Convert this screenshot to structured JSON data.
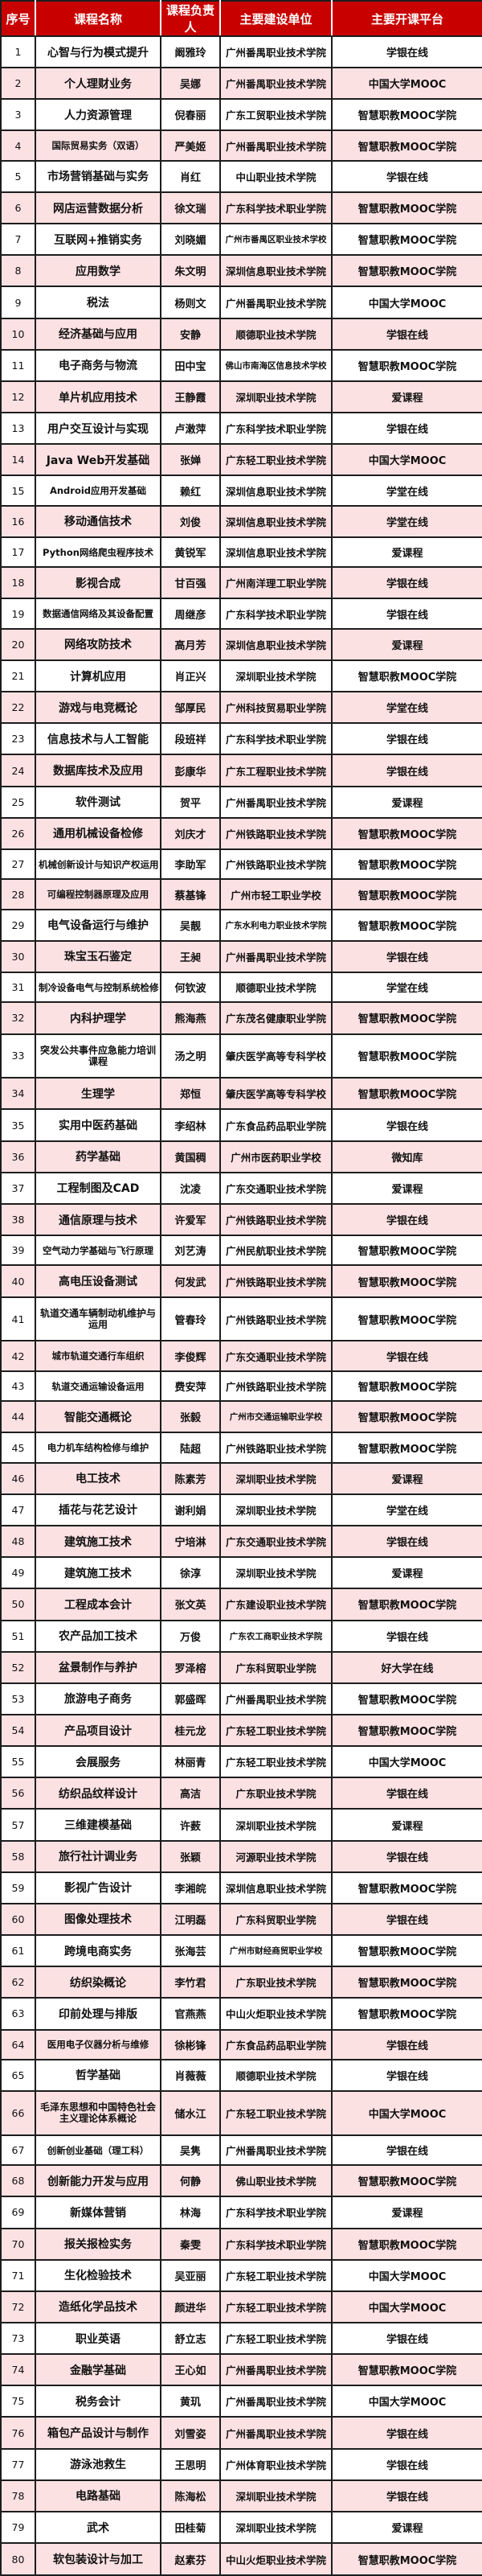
{
  "colors": {
    "header_bg": "#c80100",
    "header_text": "#ffffff",
    "alt_row_bg": "#fce1e3",
    "row_bg": "#ffffff",
    "border": "#1d1d1d",
    "text": "#111111"
  },
  "table": {
    "columns": [
      "序号",
      "课程名称",
      "课程负责人",
      "主要建设单位",
      "主要开课平台"
    ],
    "rows": [
      [
        "1",
        "心智与行为模式提升",
        "阚雅玲",
        "广州番禺职业技术学院",
        "学银在线"
      ],
      [
        "2",
        "个人理财业务",
        "吴娜",
        "广州番禺职业技术学院",
        "中国大学MOOC"
      ],
      [
        "3",
        "人力资源管理",
        "倪春丽",
        "广东工贸职业技术学院",
        "智慧职教MOOC学院"
      ],
      [
        "4",
        "国际贸易实务（双语）",
        "严美姬",
        "广州番禺职业技术学院",
        "智慧职教MOOC学院"
      ],
      [
        "5",
        "市场营销基础与实务",
        "肖红",
        "中山职业技术学院",
        "学银在线"
      ],
      [
        "6",
        "网店运营数据分析",
        "徐文瑞",
        "广东科学技术职业学院",
        "智慧职教MOOC学院"
      ],
      [
        "7",
        "互联网+推销实务",
        "刘晓媚",
        "广州市番禺区职业技术学校",
        "智慧职教MOOC学院"
      ],
      [
        "8",
        "应用数学",
        "朱文明",
        "深圳信息职业技术学院",
        "智慧职教MOOC学院"
      ],
      [
        "9",
        "税法",
        "杨则文",
        "广州番禺职业技术学院",
        "中国大学MOOC"
      ],
      [
        "10",
        "经济基础与应用",
        "安静",
        "顺德职业技术学院",
        "学银在线"
      ],
      [
        "11",
        "电子商务与物流",
        "田中宝",
        "佛山市南海区信息技术学校",
        "智慧职教MOOC学院"
      ],
      [
        "12",
        "单片机应用技术",
        "王静霞",
        "深圳职业技术学院",
        "爱课程"
      ],
      [
        "13",
        "用户交互设计与实现",
        "卢潄萍",
        "广东科学技术职业学院",
        "学银在线"
      ],
      [
        "14",
        "Java Web开发基础",
        "张婵",
        "广东轻工职业技术学院",
        "中国大学MOOC"
      ],
      [
        "15",
        "Android应用开发基础",
        "赖红",
        "深圳信息职业技术学院",
        "学堂在线"
      ],
      [
        "16",
        "移动通信技术",
        "刘俊",
        "深圳信息职业技术学院",
        "学堂在线"
      ],
      [
        "17",
        "Python网络爬虫程序技术",
        "黄锐军",
        "深圳信息职业技术学院",
        "爱课程"
      ],
      [
        "18",
        "影视合成",
        "甘百强",
        "广州南洋理工职业学院",
        "学银在线"
      ],
      [
        "19",
        "数据通信网络及其设备配置",
        "周继彦",
        "广东科学技术职业学院",
        "学银在线"
      ],
      [
        "20",
        "网络攻防技术",
        "高月芳",
        "深圳信息职业技术学院",
        "爱课程"
      ],
      [
        "21",
        "计算机应用",
        "肖正兴",
        "深圳职业技术学院",
        "智慧职教MOOC学院"
      ],
      [
        "22",
        "游戏与电竞概论",
        "邹厚民",
        "广州科技贸易职业学院",
        "学堂在线"
      ],
      [
        "23",
        "信息技术与人工智能",
        "段班祥",
        "广东科学技术职业学院",
        "学银在线"
      ],
      [
        "24",
        "数据库技术及应用",
        "彭康华",
        "广东工程职业技术学院",
        "学银在线"
      ],
      [
        "25",
        "软件测试",
        "贺平",
        "广州番禺职业技术学院",
        "爱课程"
      ],
      [
        "26",
        "通用机械设备检修",
        "刘庆才",
        "广州铁路职业技术学院",
        "智慧职教MOOC学院"
      ],
      [
        "27",
        "机械创新设计与知识产权运用",
        "李助军",
        "广州铁路职业技术学院",
        "智慧职教MOOC学院"
      ],
      [
        "28",
        "可编程控制器原理及应用",
        "蔡基锋",
        "广州市轻工职业学校",
        "智慧职教MOOC学院"
      ],
      [
        "29",
        "电气设备运行与维护",
        "吴靓",
        "广东水利电力职业技术学院",
        "智慧职教MOOC学院"
      ],
      [
        "30",
        "珠宝玉石鉴定",
        "王昶",
        "广州番禺职业技术学院",
        "学银在线"
      ],
      [
        "31",
        "制冷设备电气与控制系统检修",
        "何钦波",
        "顺德职业技术学院",
        "学堂在线"
      ],
      [
        "32",
        "内科护理学",
        "熊海燕",
        "广东茂名健康职业学院",
        "智慧职教MOOC学院"
      ],
      [
        "33",
        "突发公共事件应急能力培训课程",
        "汤之明",
        "肇庆医学高等专科学校",
        "智慧职教MOOC学院"
      ],
      [
        "34",
        "生理学",
        "郑恒",
        "肇庆医学高等专科学校",
        "智慧职教MOOC学院"
      ],
      [
        "35",
        "实用中医药基础",
        "李绍林",
        "广东食品药品职业学院",
        "学银在线"
      ],
      [
        "36",
        "药学基础",
        "黄国稠",
        "广州市医药职业学校",
        "微知库"
      ],
      [
        "37",
        "工程制图及CAD",
        "沈凌",
        "广东交通职业技术学院",
        "爱课程"
      ],
      [
        "38",
        "通信原理与技术",
        "许爱军",
        "广州铁路职业技术学院",
        "学银在线"
      ],
      [
        "39",
        "空气动力学基础与飞行原理",
        "刘艺涛",
        "广州民航职业技术学院",
        "智慧职教MOOC学院"
      ],
      [
        "40",
        "高电压设备测试",
        "何发武",
        "广州铁路职业技术学院",
        "智慧职教MOOC学院"
      ],
      [
        "41",
        "轨道交通车辆制动机维护与运用",
        "管春玲",
        "广州铁路职业技术学院",
        "智慧职教MOOC学院"
      ],
      [
        "42",
        "城市轨道交通行车组织",
        "李俊辉",
        "广东交通职业技术学院",
        "学银在线"
      ],
      [
        "43",
        "轨道交通运输设备运用",
        "费安萍",
        "广州铁路职业技术学院",
        "智慧职教MOOC学院"
      ],
      [
        "44",
        "智能交通概论",
        "张毅",
        "广州市交通运输职业学校",
        "智慧职教MOOC学院"
      ],
      [
        "45",
        "电力机车结构检修与维护",
        "陆超",
        "广州铁路职业技术学院",
        "智慧职教MOOC学院"
      ],
      [
        "46",
        "电工技术",
        "陈素芳",
        "深圳职业技术学院",
        "爱课程"
      ],
      [
        "47",
        "插花与花艺设计",
        "谢利娟",
        "深圳职业技术学院",
        "学堂在线"
      ],
      [
        "48",
        "建筑施工技术",
        "宁培淋",
        "广东交通职业技术学院",
        "学银在线"
      ],
      [
        "49",
        "建筑施工技术",
        "徐淳",
        "深圳职业技术学院",
        "爱课程"
      ],
      [
        "50",
        "工程成本会计",
        "张文英",
        "广东建设职业技术学院",
        "智慧职教MOOC学院"
      ],
      [
        "51",
        "农产品加工技术",
        "万俊",
        "广东农工商职业技术学院",
        "学银在线"
      ],
      [
        "52",
        "盆景制作与养护",
        "罗泽榕",
        "广东科贸职业学院",
        "好大学在线"
      ],
      [
        "53",
        "旅游电子商务",
        "郭盛晖",
        "广州番禺职业技术学院",
        "智慧职教MOOC学院"
      ],
      [
        "54",
        "产品项目设计",
        "桂元龙",
        "广东轻工职业技术学院",
        "智慧职教MOOC学院"
      ],
      [
        "55",
        "会展服务",
        "林丽青",
        "广东轻工职业技术学院",
        "中国大学MOOC"
      ],
      [
        "56",
        "纺织品纹样设计",
        "高洁",
        "广东职业技术学院",
        "学银在线"
      ],
      [
        "57",
        "三维建模基础",
        "许薮",
        "深圳职业技术学院",
        "爱课程"
      ],
      [
        "58",
        "旅行社计调业务",
        "张颖",
        "河源职业技术学院",
        "学银在线"
      ],
      [
        "59",
        "影视广告设计",
        "李湘皖",
        "深圳信息职业技术学院",
        "智慧职教MOOC学院"
      ],
      [
        "60",
        "图像处理技术",
        "江明磊",
        "广东科贸职业学院",
        "学银在线"
      ],
      [
        "61",
        "跨境电商实务",
        "张海芸",
        "广州市财经商贸职业学校",
        "智慧职教MOOC学院"
      ],
      [
        "62",
        "纺织染概论",
        "李竹君",
        "广东职业技术学院",
        "智慧职教MOOC学院"
      ],
      [
        "63",
        "印前处理与排版",
        "官燕燕",
        "中山火炬职业技术学院",
        "智慧职教MOOC学院"
      ],
      [
        "64",
        "医用电子仪器分析与维修",
        "徐彬锋",
        "广东食品药品职业学院",
        "学银在线"
      ],
      [
        "65",
        "哲学基础",
        "肖薇薇",
        "顺德职业技术学院",
        "学银在线"
      ],
      [
        "66",
        "毛泽东思想和中国特色社会主义理论体系概论",
        "储水江",
        "广东轻工职业技术学院",
        "中国大学MOOC"
      ],
      [
        "67",
        "创新创业基础（理工科）",
        "吴隽",
        "广州番禺职业技术学院",
        "学银在线"
      ],
      [
        "68",
        "创新能力开发与应用",
        "何静",
        "佛山职业技术学院",
        "智慧职教MOOC学院"
      ],
      [
        "69",
        "新媒体营销",
        "林海",
        "广东科学技术职业学院",
        "爱课程"
      ],
      [
        "70",
        "报关报检实务",
        "秦雯",
        "广东科学技术职业学院",
        "智慧职教MOOC学院"
      ],
      [
        "71",
        "生化检验技术",
        "吴亚丽",
        "广东轻工职业技术学院",
        "中国大学MOOC"
      ],
      [
        "72",
        "造纸化学品技术",
        "颜进华",
        "广东轻工职业技术学院",
        "中国大学MOOC"
      ],
      [
        "73",
        "职业英语",
        "舒立志",
        "广东轻工职业技术学院",
        "学银在线"
      ],
      [
        "74",
        "金融学基础",
        "王心如",
        "广州番禺职业技术学院",
        "智慧职教MOOC学院"
      ],
      [
        "75",
        "税务会计",
        "黄玑",
        "广州番禺职业技术学院",
        "中国大学MOOC"
      ],
      [
        "76",
        "箱包产品设计与制作",
        "刘雪姿",
        "广州番禺职业技术学院",
        "学银在线"
      ],
      [
        "77",
        "游泳池救生",
        "王思明",
        "广州体育职业技术学院",
        "学银在线"
      ],
      [
        "78",
        "电路基础",
        "陈海松",
        "深圳职业技术学院",
        "学银在线"
      ],
      [
        "79",
        "武术",
        "田桂菊",
        "深圳职业技术学院",
        "爱课程"
      ],
      [
        "80",
        "软包装设计与加工",
        "赵素芬",
        "中山火炬职业技术学院",
        "智慧职教MOOC学院"
      ]
    ]
  }
}
